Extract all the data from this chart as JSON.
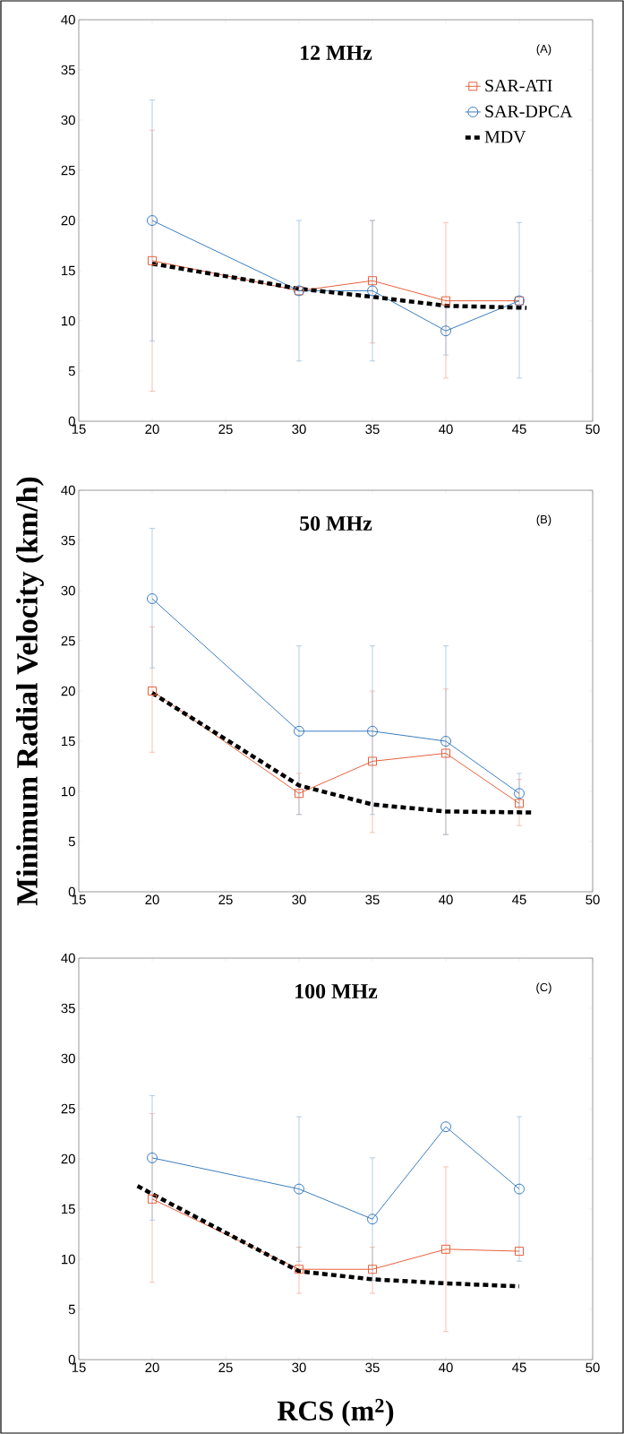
{
  "chart_data": [
    {
      "type": "line",
      "title": "12 MHz",
      "annotations": [
        "(A)"
      ],
      "xlim": [
        15,
        50
      ],
      "xticks": [
        15,
        20,
        25,
        30,
        35,
        40,
        45,
        50
      ],
      "ylim": [
        0,
        40
      ],
      "yticks": [
        0,
        5,
        10,
        15,
        20,
        25,
        30,
        35,
        40
      ],
      "legend": "top right",
      "x": [
        20,
        30,
        35,
        40,
        45
      ],
      "series": [
        {
          "name": "SAR-ATI",
          "color": "#e8603c",
          "marker": "square",
          "values": [
            16,
            13,
            14,
            12,
            12
          ],
          "errors": [
            [
              3,
              29
            ],
            null,
            [
              7.8,
              20
            ],
            [
              4.3,
              19.8
            ],
            null
          ]
        },
        {
          "name": "SAR-DPCA",
          "color": "#3a7cc0",
          "marker": "circle",
          "values": [
            20,
            13,
            13,
            9,
            12
          ],
          "errors": [
            [
              8,
              32
            ],
            [
              6,
              20
            ],
            [
              6,
              20
            ],
            [
              6.6,
              11.5
            ],
            [
              4.3,
              19.8
            ]
          ]
        },
        {
          "name": "MDV",
          "color": "#000000",
          "marker": "none",
          "line_style": "dashed",
          "x": [
            20,
            30,
            35,
            40,
            45.5
          ],
          "values": [
            15.7,
            13.2,
            12.4,
            11.5,
            11.3
          ]
        }
      ]
    },
    {
      "type": "line",
      "title": "50 MHz",
      "ylabel": "Minimum Radial Velocity (km/h)",
      "annotations": [
        "(B)"
      ],
      "xlim": [
        15,
        50
      ],
      "xticks": [
        15,
        20,
        25,
        30,
        35,
        40,
        45,
        50
      ],
      "ylim": [
        0,
        40
      ],
      "yticks": [
        0,
        5,
        10,
        15,
        20,
        25,
        30,
        35,
        40
      ],
      "x": [
        20,
        30,
        35,
        40,
        45
      ],
      "series": [
        {
          "color": "#e8603c",
          "marker": "square",
          "values": [
            20,
            9.8,
            13,
            13.8,
            8.8
          ],
          "errors": [
            [
              13.9,
              26.4
            ],
            [
              7.7,
              11.8
            ],
            [
              5.9,
              20
            ],
            [
              5.7,
              20.2
            ],
            [
              6.6,
              11.2
            ]
          ]
        },
        {
          "color": "#3a7cc0",
          "marker": "circle",
          "values": [
            29.2,
            16,
            16,
            15,
            9.8
          ],
          "errors": [
            [
              22.3,
              36.2
            ],
            [
              7.7,
              24.5
            ],
            [
              7.7,
              24.5
            ],
            [
              5.7,
              24.5
            ],
            [
              8.5,
              11.8
            ]
          ]
        },
        {
          "color": "#000000",
          "marker": "none",
          "line_style": "dashed",
          "x": [
            20,
            30,
            35,
            40,
            46
          ],
          "values": [
            19.8,
            10.6,
            8.7,
            8.0,
            7.9
          ]
        }
      ]
    },
    {
      "type": "line",
      "title": "100 MHz",
      "xlabel": "RCS (m$^{2}$)",
      "annotations": [
        "(C)"
      ],
      "xlim": [
        15,
        50
      ],
      "xticks": [
        15,
        20,
        25,
        30,
        35,
        40,
        45,
        50
      ],
      "ylim": [
        0,
        40
      ],
      "yticks": [
        0,
        5,
        10,
        15,
        20,
        25,
        30,
        35,
        40
      ],
      "x": [
        20,
        30,
        35,
        40,
        45
      ],
      "series": [
        {
          "color": "#e8603c",
          "marker": "square",
          "values": [
            16,
            9,
            9,
            11,
            10.8
          ],
          "errors": [
            [
              7.7,
              24.5
            ],
            [
              6.6,
              11.2
            ],
            [
              6.6,
              11.2
            ],
            [
              2.8,
              19.2
            ],
            null
          ]
        },
        {
          "color": "#3a7cc0",
          "marker": "circle",
          "values": [
            20.1,
            17,
            14,
            23.2,
            17
          ],
          "errors": [
            [
              13.9,
              26.3
            ],
            [
              9.8,
              24.2
            ],
            [
              7.9,
              20.1
            ],
            null,
            [
              9.8,
              24.2
            ]
          ]
        },
        {
          "color": "#000000",
          "marker": "none",
          "line_style": "dashed",
          "x": [
            19,
            20,
            30,
            35,
            40,
            45
          ],
          "values": [
            17.3,
            16.5,
            8.8,
            8.0,
            7.6,
            7.3
          ]
        }
      ]
    }
  ]
}
